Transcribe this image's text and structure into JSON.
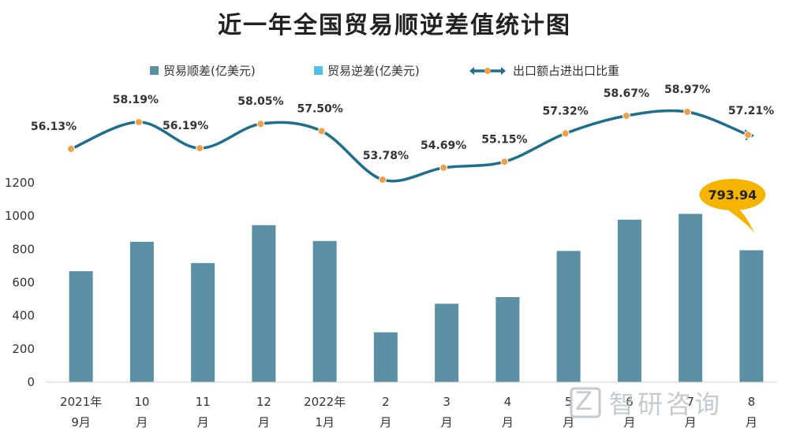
{
  "chart_data": {
    "type": "bar+line",
    "title": "近一年全国贸易顺逆差值统计图",
    "categories": [
      [
        "2021年",
        "9月"
      ],
      [
        "10",
        "月"
      ],
      [
        "11",
        "月"
      ],
      [
        "12",
        "月"
      ],
      [
        "2022年",
        "1月"
      ],
      [
        "2",
        "月"
      ],
      [
        "3",
        "月"
      ],
      [
        "4",
        "月"
      ],
      [
        "5",
        "月"
      ],
      [
        "6",
        "月"
      ],
      [
        "7",
        "月"
      ],
      [
        "8",
        "月"
      ]
    ],
    "legend": [
      {
        "name": "贸易顺差(亿美元)",
        "color": "#5b8fa3",
        "shape": "square"
      },
      {
        "name": "贸易逆差(亿美元)",
        "color": "#4fc1e9",
        "shape": "square"
      },
      {
        "name": "出口额占进出口比重",
        "color": "#1e6e8e",
        "shape": "line-marker"
      }
    ],
    "bars": {
      "name": "贸易顺差(亿美元)",
      "values": [
        668,
        845,
        717,
        945,
        850,
        300,
        472,
        512,
        790,
        978,
        1013,
        793.94
      ]
    },
    "line": {
      "name": "出口额占进出口比重",
      "values": [
        56.13,
        58.19,
        56.19,
        58.05,
        57.5,
        53.78,
        54.69,
        55.15,
        57.32,
        58.67,
        58.97,
        57.21
      ],
      "labels": [
        "56.13%",
        "58.19%",
        "56.19%",
        "58.05%",
        "57.50%",
        "53.78%",
        "54.69%",
        "55.15%",
        "57.32%",
        "58.67%",
        "58.97%",
        "57.21%"
      ]
    },
    "y_axis": {
      "ylim": [
        0,
        1200
      ],
      "ticks": [
        "0",
        "200",
        "400",
        "600",
        "800",
        "1000",
        "1200"
      ]
    },
    "line_range": [
      53.78,
      58.97
    ],
    "callout": {
      "text": "793.94",
      "color": "#f4b400",
      "index": 11
    },
    "grid": false,
    "legend_position": "top"
  },
  "watermark": {
    "text": "智研咨询",
    "logo_letter": "Z"
  }
}
